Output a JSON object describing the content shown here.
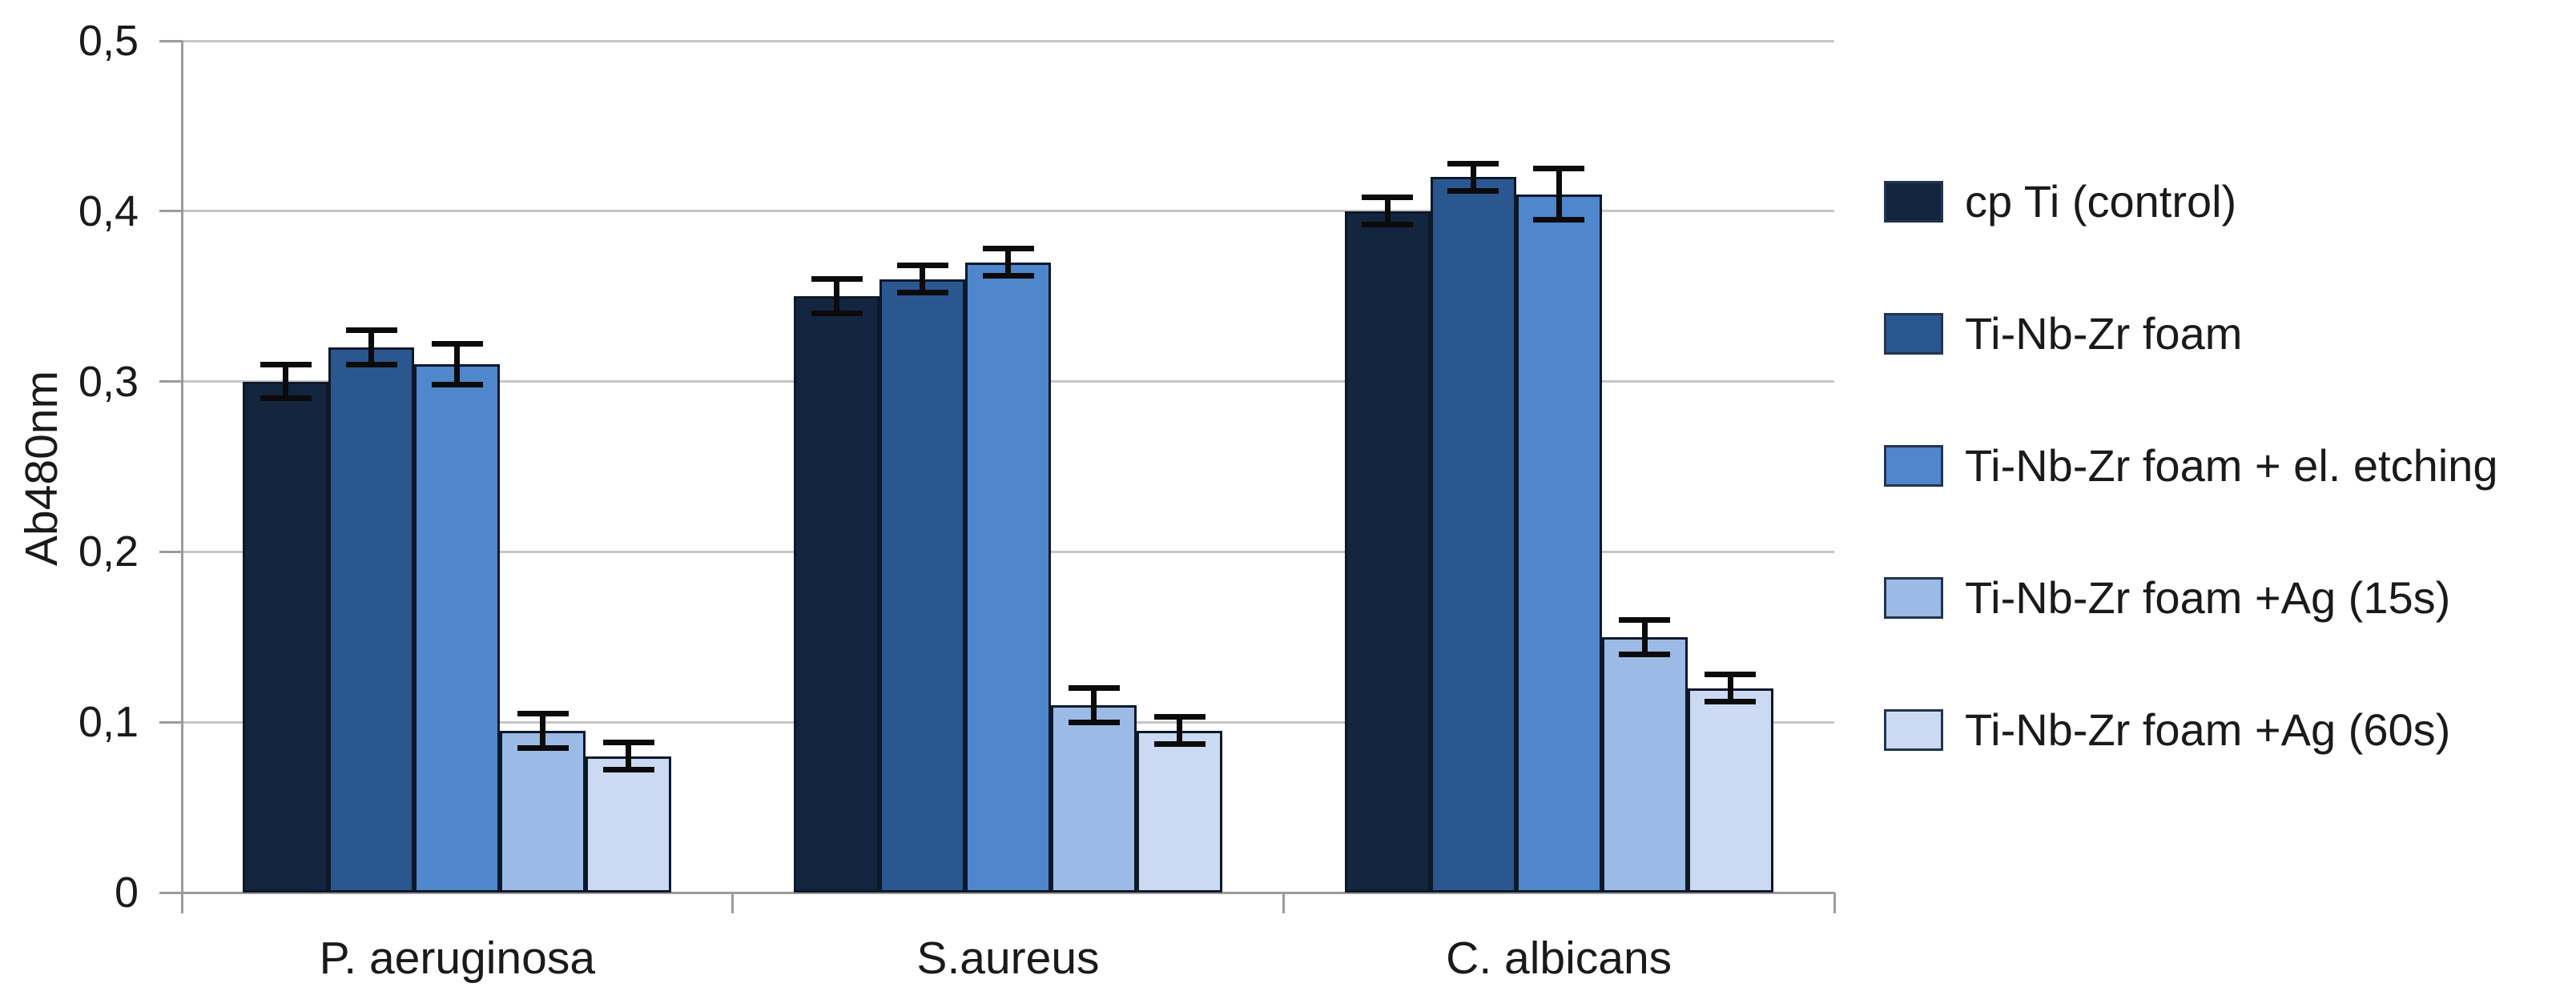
{
  "chart_data": {
    "type": "bar",
    "title": "",
    "ylabel": "Ab480nm",
    "xlabel": "",
    "ylim": [
      0,
      0.5
    ],
    "yticks": [
      0,
      0.1,
      0.2,
      0.3,
      0.4,
      0.5
    ],
    "ytick_labels": [
      "0",
      "0,1",
      "0,2",
      "0,3",
      "0,4",
      "0,5"
    ],
    "decimal_separator": ",",
    "grid": true,
    "legend_position": "right",
    "categories": [
      "P. aeruginosa",
      "S.aureus",
      "C. albicans"
    ],
    "series": [
      {
        "name": "cp Ti (control)",
        "color": "#142540",
        "values": [
          0.3,
          0.35,
          0.4
        ],
        "errors": [
          0.01,
          0.01,
          0.008
        ]
      },
      {
        "name": "Ti-Nb-Zr foam",
        "color": "#2b5791",
        "values": [
          0.32,
          0.36,
          0.42
        ],
        "errors": [
          0.01,
          0.008,
          0.008
        ]
      },
      {
        "name": "Ti-Nb-Zr foam + el. etching",
        "color": "#4f86cc",
        "values": [
          0.31,
          0.37,
          0.41
        ],
        "errors": [
          0.012,
          0.008,
          0.015
        ]
      },
      {
        "name": "Ti-Nb-Zr foam +Ag (15s)",
        "color": "#9bbae5",
        "values": [
          0.095,
          0.11,
          0.15
        ],
        "errors": [
          0.01,
          0.01,
          0.01
        ]
      },
      {
        "name": "Ti-Nb-Zr foam +Ag (60s)",
        "color": "#cbdaf2",
        "values": [
          0.08,
          0.095,
          0.12
        ],
        "errors": [
          0.008,
          0.008,
          0.008
        ]
      }
    ],
    "colors": {
      "background": "#ffffff",
      "gridline": "#c6c6c6",
      "axis": "#9b9b9b",
      "text": "#1a1a1a",
      "error_bar": "#0b0b0b",
      "bar_border": "#0d1829"
    }
  }
}
